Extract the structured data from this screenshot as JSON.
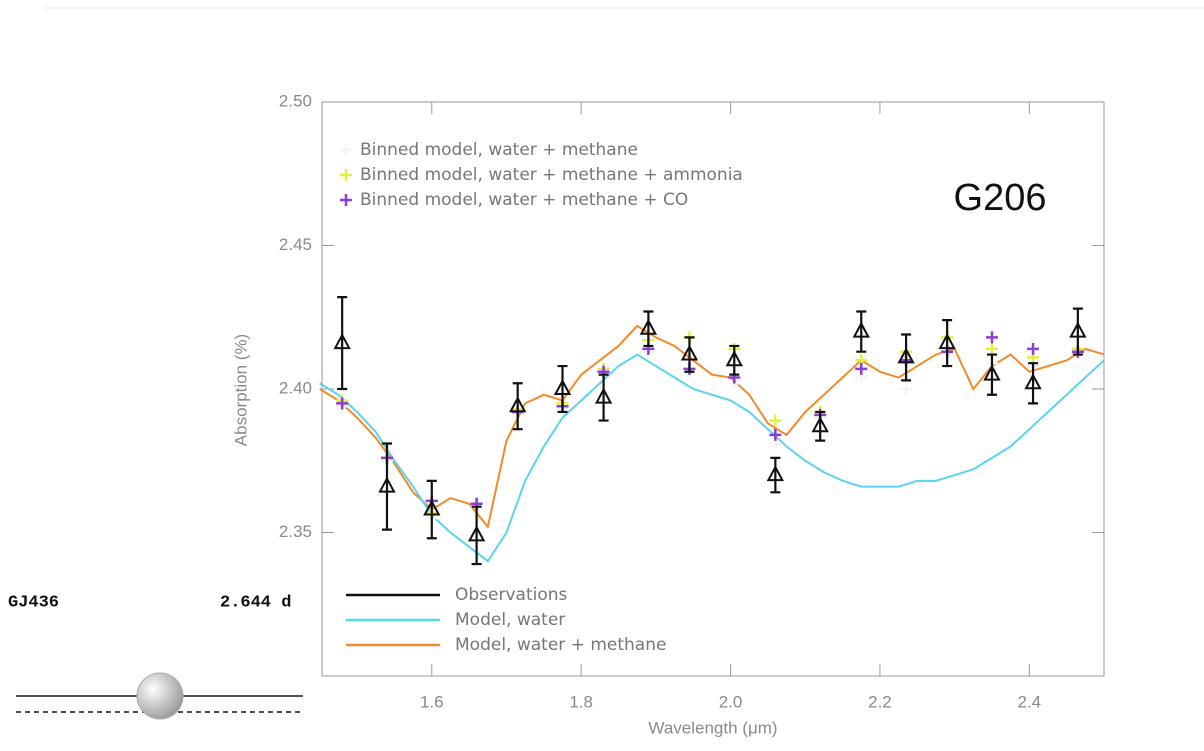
{
  "planet": {
    "name": "GJ436",
    "period": "2.644 d"
  },
  "chart_data": {
    "type": "line",
    "annotation": "G206",
    "xlabel": "Wavelength (μm)",
    "ylabel": "Absorption (%)",
    "xlim": [
      1.453,
      2.5
    ],
    "ylim": [
      2.3,
      2.5
    ],
    "xticks": [
      1.6,
      1.8,
      {
        "value": 2,
        "label": "2.0"
      },
      2.2,
      2.4
    ],
    "yticks": [
      2.35,
      {
        "value": 2.4,
        "label": "2.40"
      },
      2.45,
      {
        "value": 2.5,
        "label": "2.50"
      }
    ],
    "series": [
      {
        "name": "Binned model, water + methane",
        "color": "#f4f4f4",
        "style": "plus",
        "legend": "upper-left",
        "x": [
          1.48,
          1.54,
          1.6,
          1.66,
          1.715,
          1.775,
          1.83,
          1.89,
          1.945,
          2.005,
          2.06,
          2.12,
          2.175,
          2.235,
          2.29,
          2.35,
          2.405,
          2.465
        ],
        "values": [
          2.394,
          2.375,
          2.355,
          2.359,
          2.392,
          2.393,
          2.406,
          2.413,
          2.406,
          2.402,
          2.381,
          2.39,
          2.404,
          2.4,
          2.412,
          2.409,
          2.408,
          2.412
        ]
      },
      {
        "name": "Binned model, water + methane + ammonia",
        "color": "#e3f03c",
        "style": "plus",
        "legend": "upper-left",
        "x": [
          1.48,
          1.54,
          1.6,
          1.66,
          1.715,
          1.775,
          1.83,
          1.89,
          1.945,
          2.005,
          2.06,
          2.12,
          2.175,
          2.235,
          2.29,
          2.35,
          2.405,
          2.465
        ],
        "values": [
          2.396,
          2.376,
          2.357,
          2.36,
          2.393,
          2.395,
          2.407,
          2.417,
          2.418,
          2.414,
          2.389,
          2.392,
          2.41,
          2.413,
          2.418,
          2.414,
          2.411,
          2.414
        ]
      },
      {
        "name": "Binned model, water + methane + CO",
        "color": "#8a3fd0",
        "style": "plus",
        "legend": "upper-left",
        "x": [
          1.48,
          1.54,
          1.6,
          1.66,
          1.715,
          1.775,
          1.83,
          1.89,
          1.945,
          2.005,
          2.06,
          2.12,
          2.175,
          2.235,
          2.29,
          2.35,
          2.405,
          2.465
        ],
        "values": [
          2.395,
          2.376,
          2.361,
          2.36,
          2.392,
          2.394,
          2.406,
          2.414,
          2.407,
          2.404,
          2.384,
          2.391,
          2.407,
          2.41,
          2.413,
          2.418,
          2.414,
          2.413
        ]
      },
      {
        "name": "Observations",
        "color": "#111111",
        "style": "errorbar",
        "legend": "lower-left",
        "x": [
          1.48,
          1.54,
          1.6,
          1.66,
          1.715,
          1.775,
          1.83,
          1.89,
          1.945,
          2.005,
          2.06,
          2.12,
          2.175,
          2.235,
          2.29,
          2.35,
          2.405,
          2.465
        ],
        "values": [
          2.416,
          2.366,
          2.358,
          2.349,
          2.394,
          2.4,
          2.397,
          2.421,
          2.412,
          2.41,
          2.37,
          2.387,
          2.42,
          2.411,
          2.416,
          2.405,
          2.402,
          2.42
        ],
        "errors": [
          0.016,
          0.015,
          0.01,
          0.01,
          0.008,
          0.008,
          0.008,
          0.006,
          0.006,
          0.005,
          0.006,
          0.005,
          0.007,
          0.008,
          0.008,
          0.007,
          0.007,
          0.008
        ]
      },
      {
        "name": "Model, water",
        "color": "#5bd3f3",
        "style": "line",
        "legend": "lower-left",
        "x": [
          1.45,
          1.475,
          1.5,
          1.525,
          1.55,
          1.575,
          1.6,
          1.625,
          1.65,
          1.675,
          1.7,
          1.725,
          1.75,
          1.775,
          1.8,
          1.825,
          1.85,
          1.875,
          1.9,
          1.925,
          1.95,
          1.975,
          2.0,
          2.025,
          2.05,
          2.075,
          2.1,
          2.125,
          2.15,
          2.175,
          2.2,
          2.225,
          2.25,
          2.275,
          2.3,
          2.325,
          2.35,
          2.375,
          2.4,
          2.425,
          2.45,
          2.475,
          2.5
        ],
        "values": [
          2.402,
          2.398,
          2.392,
          2.385,
          2.375,
          2.366,
          2.356,
          2.35,
          2.345,
          2.34,
          2.35,
          2.368,
          2.38,
          2.39,
          2.396,
          2.402,
          2.408,
          2.412,
          2.408,
          2.404,
          2.4,
          2.398,
          2.396,
          2.392,
          2.386,
          2.38,
          2.375,
          2.371,
          2.368,
          2.366,
          2.366,
          2.366,
          2.368,
          2.368,
          2.37,
          2.372,
          2.376,
          2.38,
          2.386,
          2.392,
          2.398,
          2.404,
          2.41
        ]
      },
      {
        "name": "Model, water + methane",
        "color": "#f28a2a",
        "style": "line",
        "legend": "lower-left",
        "x": [
          1.45,
          1.475,
          1.5,
          1.525,
          1.55,
          1.575,
          1.6,
          1.625,
          1.65,
          1.675,
          1.7,
          1.725,
          1.75,
          1.775,
          1.8,
          1.825,
          1.85,
          1.875,
          1.9,
          1.925,
          1.95,
          1.975,
          2.0,
          2.025,
          2.05,
          2.075,
          2.1,
          2.125,
          2.15,
          2.175,
          2.2,
          2.225,
          2.25,
          2.275,
          2.3,
          2.325,
          2.35,
          2.375,
          2.4,
          2.425,
          2.45,
          2.475,
          2.5
        ],
        "values": [
          2.4,
          2.396,
          2.39,
          2.383,
          2.374,
          2.364,
          2.358,
          2.362,
          2.36,
          2.352,
          2.382,
          2.395,
          2.398,
          2.396,
          2.405,
          2.41,
          2.415,
          2.422,
          2.418,
          2.415,
          2.41,
          2.405,
          2.404,
          2.398,
          2.388,
          2.384,
          2.392,
          2.398,
          2.404,
          2.41,
          2.406,
          2.404,
          2.408,
          2.412,
          2.414,
          2.4,
          2.408,
          2.412,
          2.406,
          2.408,
          2.41,
          2.414,
          2.412
        ]
      }
    ]
  }
}
